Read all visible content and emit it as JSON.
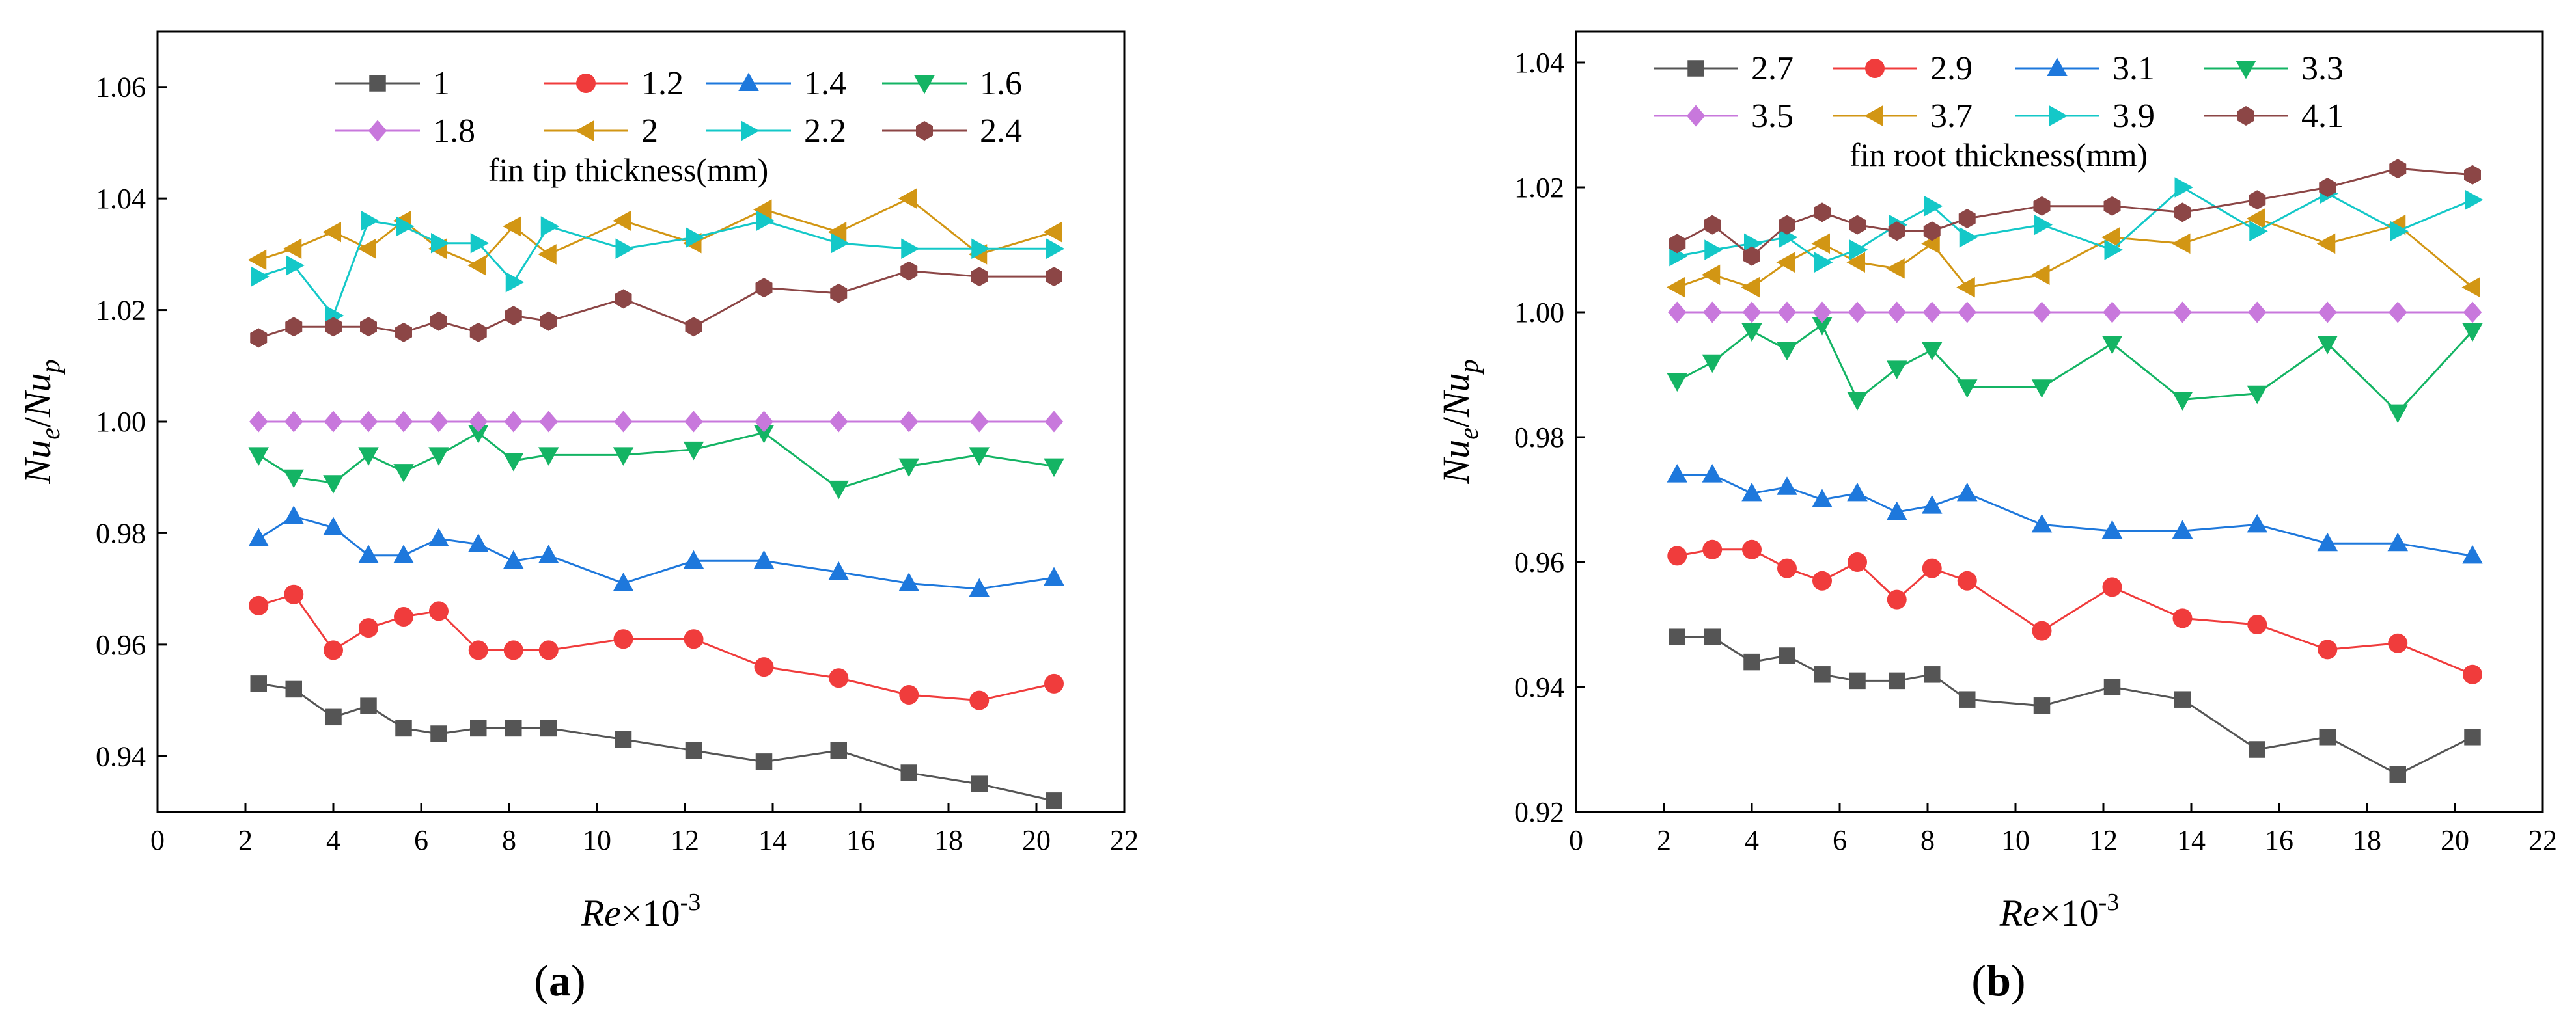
{
  "chart_data": [
    {
      "type": "line",
      "panel_label": "(a)",
      "xlabel_main": "Re",
      "xlabel_tail": "×10",
      "xlabel_exp": "-3",
      "ylabel_num": "Nu",
      "ylabel_num_sub": "e",
      "ylabel_sep": "/",
      "ylabel_den": "Nu",
      "ylabel_den_sub": "p",
      "xlim": [
        0,
        22
      ],
      "ylim": [
        0.93,
        1.07
      ],
      "xticks": [
        0,
        2,
        4,
        6,
        8,
        10,
        12,
        14,
        16,
        18,
        20,
        22
      ],
      "yticks": [
        0.94,
        0.96,
        0.98,
        1.0,
        1.02,
        1.04,
        1.06
      ],
      "ytick_labels": [
        "0.94",
        "0.96",
        "0.98",
        "1.00",
        "1.02",
        "1.04",
        "1.06"
      ],
      "legend_title": "fin tip thickness(mm)",
      "legend_position": "top",
      "x": [
        2.3,
        3.1,
        4.0,
        4.8,
        5.6,
        6.4,
        7.3,
        8.1,
        8.9,
        10.6,
        12.2,
        13.8,
        15.5,
        17.1,
        18.7,
        20.4
      ],
      "series": [
        {
          "name": "1",
          "color": "#555555",
          "marker": "square",
          "values": [
            0.953,
            0.952,
            0.947,
            0.949,
            0.945,
            0.944,
            0.945,
            0.945,
            0.945,
            0.943,
            0.941,
            0.939,
            0.941,
            0.937,
            0.935,
            0.932
          ]
        },
        {
          "name": "1.2",
          "color": "#f03c3c",
          "marker": "circle",
          "values": [
            0.967,
            0.969,
            0.959,
            0.963,
            0.965,
            0.966,
            0.959,
            0.959,
            0.959,
            0.961,
            0.961,
            0.956,
            0.954,
            0.951,
            0.95,
            0.953
          ]
        },
        {
          "name": "1.4",
          "color": "#1e78dc",
          "marker": "triangle-up",
          "values": [
            0.979,
            0.983,
            0.981,
            0.976,
            0.976,
            0.979,
            0.978,
            0.975,
            0.976,
            0.971,
            0.975,
            0.975,
            0.973,
            0.971,
            0.97,
            0.972
          ]
        },
        {
          "name": "1.6",
          "color": "#14b464",
          "marker": "triangle-down",
          "values": [
            0.994,
            0.99,
            0.989,
            0.994,
            0.991,
            0.994,
            0.998,
            0.993,
            0.994,
            0.994,
            0.995,
            0.998,
            0.988,
            0.992,
            0.994,
            0.992
          ]
        },
        {
          "name": "1.8",
          "color": "#c878dc",
          "marker": "diamond",
          "values": [
            1.0,
            1.0,
            1.0,
            1.0,
            1.0,
            1.0,
            1.0,
            1.0,
            1.0,
            1.0,
            1.0,
            1.0,
            1.0,
            1.0,
            1.0,
            1.0
          ]
        },
        {
          "name": "2",
          "color": "#d29614",
          "marker": "triangle-left",
          "values": [
            1.029,
            1.031,
            1.034,
            1.031,
            1.036,
            1.031,
            1.028,
            1.035,
            1.03,
            1.036,
            1.032,
            1.038,
            1.034,
            1.04,
            1.03,
            1.034
          ]
        },
        {
          "name": "2.2",
          "color": "#14c8c8",
          "marker": "triangle-right",
          "values": [
            1.026,
            1.028,
            1.019,
            1.036,
            1.035,
            1.032,
            1.032,
            1.025,
            1.035,
            1.031,
            1.033,
            1.036,
            1.032,
            1.031,
            1.031,
            1.031
          ]
        },
        {
          "name": "2.4",
          "color": "#8c4646",
          "marker": "hexagon",
          "values": [
            1.015,
            1.017,
            1.017,
            1.017,
            1.016,
            1.018,
            1.016,
            1.019,
            1.018,
            1.022,
            1.017,
            1.024,
            1.023,
            1.027,
            1.026,
            1.026
          ]
        }
      ]
    },
    {
      "type": "line",
      "panel_label": "(b)",
      "xlabel_main": "Re",
      "xlabel_tail": "×10",
      "xlabel_exp": "-3",
      "ylabel_num": "Nu",
      "ylabel_num_sub": "e",
      "ylabel_sep": "/",
      "ylabel_den": "Nu",
      "ylabel_den_sub": "p",
      "xlim": [
        0,
        22
      ],
      "ylim": [
        0.92,
        1.045
      ],
      "xticks": [
        0,
        2,
        4,
        6,
        8,
        10,
        12,
        14,
        16,
        18,
        20,
        22
      ],
      "yticks": [
        0.92,
        0.94,
        0.96,
        0.98,
        1.0,
        1.02,
        1.04
      ],
      "ytick_labels": [
        "0.92",
        "0.94",
        "0.96",
        "0.98",
        "1.00",
        "1.02",
        "1.04"
      ],
      "legend_title": "fin root thickness(mm)",
      "legend_position": "top",
      "x": [
        2.3,
        3.1,
        4.0,
        4.8,
        5.6,
        6.4,
        7.3,
        8.1,
        8.9,
        10.6,
        12.2,
        13.8,
        15.5,
        17.1,
        18.7,
        20.4
      ],
      "series": [
        {
          "name": "2.7",
          "color": "#555555",
          "marker": "square",
          "values": [
            0.948,
            0.948,
            0.944,
            0.945,
            0.942,
            0.941,
            0.941,
            0.942,
            0.938,
            0.937,
            0.94,
            0.938,
            0.93,
            0.932,
            0.926,
            0.932
          ]
        },
        {
          "name": "2.9",
          "color": "#f03c3c",
          "marker": "circle",
          "values": [
            0.961,
            0.962,
            0.962,
            0.959,
            0.957,
            0.96,
            0.954,
            0.959,
            0.957,
            0.949,
            0.956,
            0.951,
            0.95,
            0.946,
            0.947,
            0.942
          ]
        },
        {
          "name": "3.1",
          "color": "#1e78dc",
          "marker": "triangle-up",
          "values": [
            0.974,
            0.974,
            0.971,
            0.972,
            0.97,
            0.971,
            0.968,
            0.969,
            0.971,
            0.966,
            0.965,
            0.965,
            0.966,
            0.963,
            0.963,
            0.961
          ]
        },
        {
          "name": "3.3",
          "color": "#14b464",
          "marker": "triangle-down",
          "values": [
            0.989,
            0.992,
            0.997,
            0.994,
            0.998,
            0.986,
            0.991,
            0.994,
            0.988,
            0.988,
            0.995,
            0.986,
            0.987,
            0.995,
            0.984,
            0.997
          ]
        },
        {
          "name": "3.5",
          "color": "#c878dc",
          "marker": "diamond",
          "values": [
            1.0,
            1.0,
            1.0,
            1.0,
            1.0,
            1.0,
            1.0,
            1.0,
            1.0,
            1.0,
            1.0,
            1.0,
            1.0,
            1.0,
            1.0,
            1.0
          ]
        },
        {
          "name": "3.7",
          "color": "#d29614",
          "marker": "triangle-left",
          "values": [
            1.004,
            1.006,
            1.004,
            1.008,
            1.011,
            1.008,
            1.007,
            1.011,
            1.004,
            1.006,
            1.012,
            1.011,
            1.015,
            1.011,
            1.014,
            1.004
          ]
        },
        {
          "name": "3.9",
          "color": "#14c8c8",
          "marker": "triangle-right",
          "values": [
            1.009,
            1.01,
            1.011,
            1.012,
            1.008,
            1.01,
            1.014,
            1.017,
            1.012,
            1.014,
            1.01,
            1.02,
            1.013,
            1.019,
            1.013,
            1.018
          ]
        },
        {
          "name": "4.1",
          "color": "#8c4646",
          "marker": "hexagon",
          "values": [
            1.011,
            1.014,
            1.009,
            1.014,
            1.016,
            1.014,
            1.013,
            1.013,
            1.015,
            1.017,
            1.017,
            1.016,
            1.018,
            1.02,
            1.023,
            1.022
          ]
        }
      ]
    }
  ]
}
